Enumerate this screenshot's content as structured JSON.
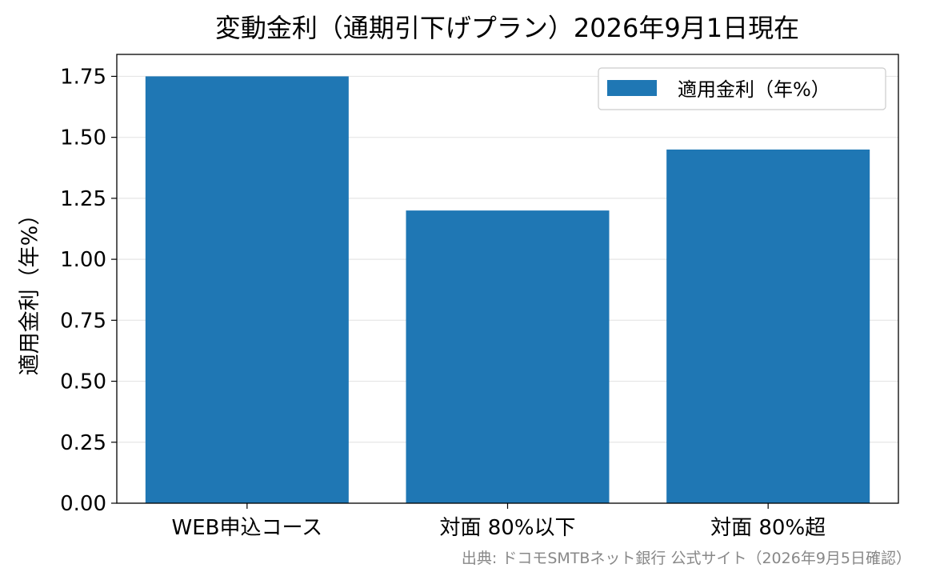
{
  "chart_data": {
    "type": "bar",
    "title": "変動金利（通期引下げプラン）2026年9月1日現在",
    "xlabel": "",
    "ylabel": "適用金利（年%）",
    "categories": [
      "WEB申込コース",
      "対面 80%以下",
      "対面 80%超"
    ],
    "series": [
      {
        "name": "適用金利（年%）",
        "values": [
          1.75,
          1.2,
          1.45
        ]
      }
    ],
    "ylim": [
      0,
      1.84
    ],
    "yticks": [
      "0.00",
      "0.25",
      "0.50",
      "0.75",
      "1.00",
      "1.25",
      "1.50",
      "1.75"
    ],
    "grid": "horizontal",
    "legend": "top-right",
    "source": "出典: ドコモSMTBネット銀行 公式サイト（2026年9月5日確認）",
    "colors": {
      "bar": "#1f77b4",
      "grid": "#e6e6e6",
      "source_text": "#888888"
    }
  }
}
